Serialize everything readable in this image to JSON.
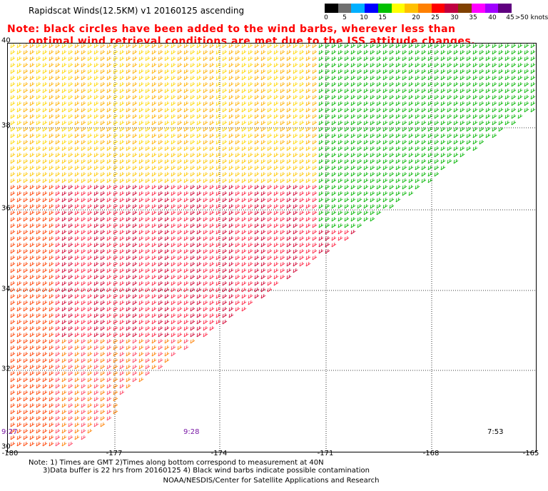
{
  "title": "Rapidscat Winds(12.5KM) v1 20160125 ascending",
  "note_line1": "Note: black circles have been added to the wind barbs, wherever less than",
  "note_line2": "optimal wind retrieval conditions are met due to the ISS attitude changes.",
  "legend": {
    "labels": [
      "0",
      "5",
      "10",
      "15",
      "20",
      "25",
      "30",
      "35",
      "40",
      "45",
      ">50 knots"
    ],
    "colors": [
      "#000000",
      "#707070",
      "#00b0ff",
      "#0000ff",
      "#00c000",
      "#ffff00",
      "#ffc000",
      "#ff8000",
      "#ff0000",
      "#c00040",
      "#804000",
      "#ff00ff",
      "#a000ff",
      "#600080"
    ]
  },
  "lat_labels": [
    "40",
    "38",
    "36",
    "34",
    "32",
    "30"
  ],
  "lon_labels": [
    "-180",
    "-177",
    "-174",
    "-171",
    "-168",
    "-165"
  ],
  "times": [
    "9:27",
    "9:28",
    "7:53"
  ],
  "footer_line1": "Note: 1) Times are GMT 2)Times along bottom correspond to measurement at 40N",
  "footer_line2": "3)Data buffer is 22 hrs from 20160125 4) Black wind barbs indicate possible contamination",
  "credit": "NOAA/NESDIS/Center for Satellite Applications and Research"
}
